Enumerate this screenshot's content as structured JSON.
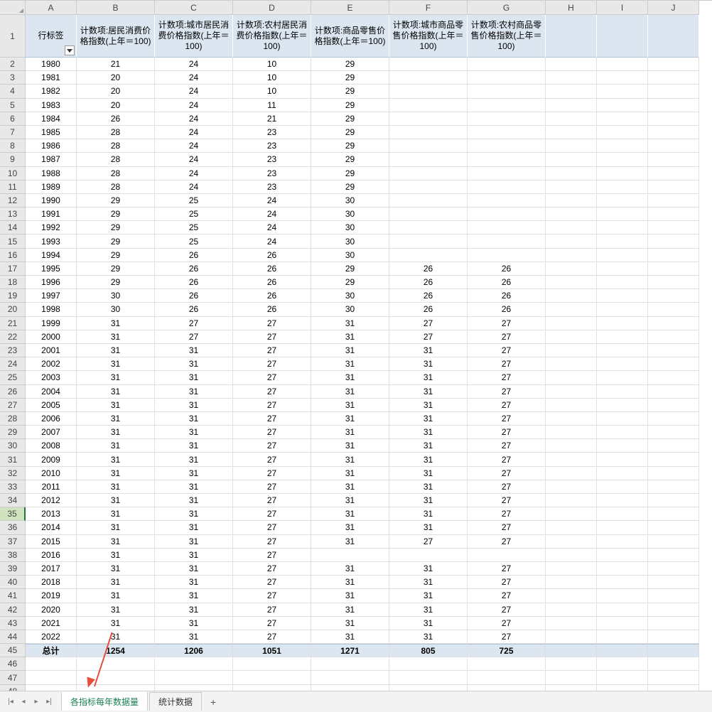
{
  "columns": {
    "letters": [
      "A",
      "B",
      "C",
      "D",
      "E",
      "F",
      "G",
      "H",
      "I",
      "J"
    ],
    "widths": [
      72,
      110,
      110,
      110,
      110,
      110,
      110,
      72,
      72,
      72
    ]
  },
  "header_row_height": 60,
  "data_row_height": 19.2,
  "header_bg": "#dce6f1",
  "grid_border": "#e0e0e0",
  "selected_row": 35,
  "headers": [
    "行标签",
    "计数项:居民消费价格指数(上年＝100)",
    "计数项:城市居民消费价格指数(上年＝100)",
    "计数项:农村居民消费价格指数(上年＝100)",
    "计数项:商品零售价格指数(上年＝100)",
    "计数项:城市商品零售价格指数(上年＝100)",
    "计数项:农村商品零售价格指数(上年＝100)"
  ],
  "rows": [
    [
      "1980",
      "21",
      "24",
      "10",
      "29",
      "",
      ""
    ],
    [
      "1981",
      "20",
      "24",
      "10",
      "29",
      "",
      ""
    ],
    [
      "1982",
      "20",
      "24",
      "10",
      "29",
      "",
      ""
    ],
    [
      "1983",
      "20",
      "24",
      "11",
      "29",
      "",
      ""
    ],
    [
      "1984",
      "26",
      "24",
      "21",
      "29",
      "",
      ""
    ],
    [
      "1985",
      "28",
      "24",
      "23",
      "29",
      "",
      ""
    ],
    [
      "1986",
      "28",
      "24",
      "23",
      "29",
      "",
      ""
    ],
    [
      "1987",
      "28",
      "24",
      "23",
      "29",
      "",
      ""
    ],
    [
      "1988",
      "28",
      "24",
      "23",
      "29",
      "",
      ""
    ],
    [
      "1989",
      "28",
      "24",
      "23",
      "29",
      "",
      ""
    ],
    [
      "1990",
      "29",
      "25",
      "24",
      "30",
      "",
      ""
    ],
    [
      "1991",
      "29",
      "25",
      "24",
      "30",
      "",
      ""
    ],
    [
      "1992",
      "29",
      "25",
      "24",
      "30",
      "",
      ""
    ],
    [
      "1993",
      "29",
      "25",
      "24",
      "30",
      "",
      ""
    ],
    [
      "1994",
      "29",
      "26",
      "26",
      "30",
      "",
      ""
    ],
    [
      "1995",
      "29",
      "26",
      "26",
      "29",
      "26",
      "26"
    ],
    [
      "1996",
      "29",
      "26",
      "26",
      "29",
      "26",
      "26"
    ],
    [
      "1997",
      "30",
      "26",
      "26",
      "30",
      "26",
      "26"
    ],
    [
      "1998",
      "30",
      "26",
      "26",
      "30",
      "26",
      "26"
    ],
    [
      "1999",
      "31",
      "27",
      "27",
      "31",
      "27",
      "27"
    ],
    [
      "2000",
      "31",
      "27",
      "27",
      "31",
      "27",
      "27"
    ],
    [
      "2001",
      "31",
      "31",
      "27",
      "31",
      "31",
      "27"
    ],
    [
      "2002",
      "31",
      "31",
      "27",
      "31",
      "31",
      "27"
    ],
    [
      "2003",
      "31",
      "31",
      "27",
      "31",
      "31",
      "27"
    ],
    [
      "2004",
      "31",
      "31",
      "27",
      "31",
      "31",
      "27"
    ],
    [
      "2005",
      "31",
      "31",
      "27",
      "31",
      "31",
      "27"
    ],
    [
      "2006",
      "31",
      "31",
      "27",
      "31",
      "31",
      "27"
    ],
    [
      "2007",
      "31",
      "31",
      "27",
      "31",
      "31",
      "27"
    ],
    [
      "2008",
      "31",
      "31",
      "27",
      "31",
      "31",
      "27"
    ],
    [
      "2009",
      "31",
      "31",
      "27",
      "31",
      "31",
      "27"
    ],
    [
      "2010",
      "31",
      "31",
      "27",
      "31",
      "31",
      "27"
    ],
    [
      "2011",
      "31",
      "31",
      "27",
      "31",
      "31",
      "27"
    ],
    [
      "2012",
      "31",
      "31",
      "27",
      "31",
      "31",
      "27"
    ],
    [
      "2013",
      "31",
      "31",
      "27",
      "31",
      "31",
      "27"
    ],
    [
      "2014",
      "31",
      "31",
      "27",
      "31",
      "31",
      "27"
    ],
    [
      "2015",
      "31",
      "31",
      "27",
      "31",
      "27",
      "27"
    ],
    [
      "2016",
      "31",
      "31",
      "27",
      "",
      "",
      ""
    ],
    [
      "2017",
      "31",
      "31",
      "27",
      "31",
      "31",
      "27"
    ],
    [
      "2018",
      "31",
      "31",
      "27",
      "31",
      "31",
      "27"
    ],
    [
      "2019",
      "31",
      "31",
      "27",
      "31",
      "31",
      "27"
    ],
    [
      "2020",
      "31",
      "31",
      "27",
      "31",
      "31",
      "27"
    ],
    [
      "2021",
      "31",
      "31",
      "27",
      "31",
      "31",
      "27"
    ],
    [
      "2022",
      "31",
      "31",
      "27",
      "31",
      "31",
      "27"
    ]
  ],
  "total": {
    "label": "总计",
    "values": [
      "1254",
      "1206",
      "1051",
      "1271",
      "805",
      "725"
    ]
  },
  "tabs": {
    "items": [
      "各指标每年数据量",
      "统计数据"
    ],
    "active": 0
  },
  "arrow_color": "#e74c3c"
}
